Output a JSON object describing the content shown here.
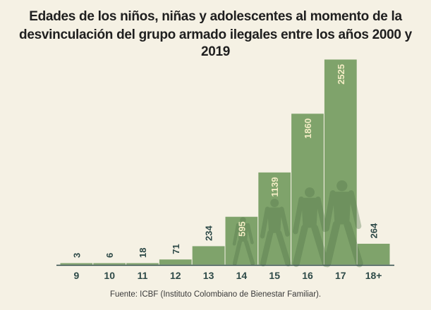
{
  "title_line1": "Edades de los niños, niñas y adolescentes al momento de la",
  "title_line2": "desvinculación del grupo armado ilegales entre los años 2000 y 2019",
  "source": "Fuente: ICBF (Instituto Colombiano de Bienestar Familiar).",
  "colors": {
    "bar": "#7fa36b",
    "bar_stroke": "#f5f1e4",
    "value_label": "#f3ecc4",
    "value_label_outside": "#2e4a48",
    "category_label": "#2e4a48",
    "axis": "#2e4a48",
    "background": "#f5f1e4"
  },
  "chart_data": {
    "type": "bar",
    "title": "Edades de los niños, niñas y adolescentes al momento de la desvinculación del grupo armado ilegales entre los años 2000 y 2019",
    "categories": [
      "9",
      "10",
      "11",
      "12",
      "13",
      "14",
      "15",
      "16",
      "17",
      "18+"
    ],
    "values": [
      3,
      6,
      18,
      71,
      234,
      595,
      1139,
      1860,
      2525,
      264
    ],
    "value_labels": [
      "3",
      "6",
      "18",
      "71",
      "234",
      "595",
      "1139",
      "1860",
      "2525",
      "264"
    ],
    "xlabel": "",
    "ylabel": "",
    "ylim": [
      0,
      2525
    ],
    "grid": false,
    "legend": "none",
    "data_labels": "rotated vertical"
  }
}
